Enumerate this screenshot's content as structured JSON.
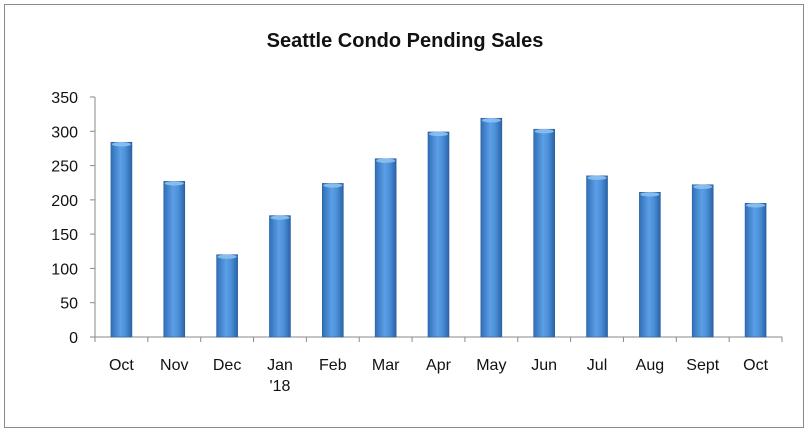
{
  "chart_data": {
    "type": "bar",
    "title": "Seattle Condo Pending Sales",
    "xlabel": "",
    "ylabel": "",
    "categories": [
      [
        "Oct"
      ],
      [
        "Nov"
      ],
      [
        "Dec"
      ],
      [
        "Jan",
        "'18"
      ],
      [
        "Feb"
      ],
      [
        "Mar"
      ],
      [
        "Apr"
      ],
      [
        "May"
      ],
      [
        "Jun"
      ],
      [
        "Jul"
      ],
      [
        "Aug"
      ],
      [
        "Sept"
      ],
      [
        "Oct"
      ]
    ],
    "values": [
      284,
      227,
      120,
      177,
      224,
      260,
      299,
      319,
      303,
      235,
      211,
      222,
      195
    ],
    "ylim": [
      0,
      350
    ],
    "yticks": [
      0,
      50,
      100,
      150,
      200,
      250,
      300,
      350
    ],
    "grid": false,
    "legend": "none",
    "colors": {
      "bar": "#4a8fd8",
      "bar_dark": "#2f6fb8",
      "bar_light": "#8cc0f0",
      "axis": "#8a8a8a"
    }
  }
}
